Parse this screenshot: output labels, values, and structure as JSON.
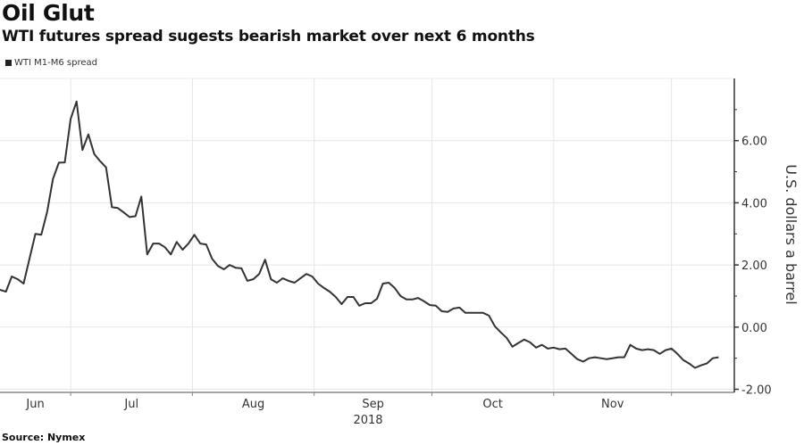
{
  "header": {
    "title": "Oil Glut",
    "subtitle": "WTI futures spread sugests bearish market over next 6 months"
  },
  "footer": {
    "source": "Source: Nymex"
  },
  "chart_data": {
    "type": "line",
    "title": "Oil Glut",
    "subtitle": "WTI futures spread sugests bearish market over next 6 months",
    "ylabel": "U.S. dollars a barrel",
    "xlabel": "",
    "x_start": "2018-06-13",
    "x_end": "2018-12-13",
    "xlim": [
      "2018-06-13",
      "2018-12-17"
    ],
    "ylim": [
      -2.1,
      8.0
    ],
    "y_axis_side": "right",
    "yticks": [
      -2,
      0,
      2,
      4,
      6
    ],
    "ytick_labels": [
      "-2.00",
      "0.00",
      "2.00",
      "4.00",
      "6.00"
    ],
    "x_month_boundaries": [
      "2018-07-01",
      "2018-08-01",
      "2018-09-01",
      "2018-10-01",
      "2018-11-01",
      "2018-12-01"
    ],
    "x_tick_labels": [
      {
        "label": "Jun",
        "from": "2018-06-13",
        "to": "2018-07-01"
      },
      {
        "label": "Jul",
        "from": "2018-07-01",
        "to": "2018-08-01"
      },
      {
        "label": "Aug",
        "from": "2018-08-01",
        "to": "2018-09-01"
      },
      {
        "label": "Sep",
        "from": "2018-09-01",
        "to": "2018-10-01"
      },
      {
        "label": "Oct",
        "from": "2018-10-01",
        "to": "2018-11-01"
      },
      {
        "label": "Nov",
        "from": "2018-11-01",
        "to": "2018-12-01"
      }
    ],
    "year_label": "2018",
    "grid": true,
    "legend_position": "top-left",
    "series": [
      {
        "name": "WTI M1-M6 spread",
        "color": "#333333",
        "values": [
          1.2,
          1.14,
          1.63,
          1.54,
          1.4,
          2.2,
          3.0,
          2.97,
          3.7,
          4.77,
          5.29,
          5.3,
          6.7,
          7.26,
          5.7,
          6.2,
          5.57,
          5.34,
          5.14,
          3.86,
          3.83,
          3.69,
          3.54,
          3.57,
          4.2,
          2.34,
          2.69,
          2.69,
          2.57,
          2.34,
          2.74,
          2.49,
          2.69,
          2.97,
          2.69,
          2.66,
          2.2,
          1.97,
          1.86,
          2.0,
          1.91,
          1.89,
          1.49,
          1.54,
          1.71,
          2.17,
          1.54,
          1.43,
          1.57,
          1.49,
          1.43,
          1.57,
          1.71,
          1.63,
          1.4,
          1.26,
          1.14,
          0.97,
          0.74,
          0.97,
          0.97,
          0.69,
          0.77,
          0.77,
          0.91,
          1.4,
          1.43,
          1.26,
          1.0,
          0.89,
          0.89,
          0.94,
          0.83,
          0.71,
          0.69,
          0.51,
          0.49,
          0.6,
          0.63,
          0.46,
          0.46,
          0.46,
          0.46,
          0.37,
          0.03,
          -0.17,
          -0.34,
          -0.63,
          -0.51,
          -0.4,
          -0.49,
          -0.66,
          -0.57,
          -0.69,
          -0.66,
          -0.71,
          -0.69,
          -0.86,
          -1.03,
          -1.11,
          -1.0,
          -0.97,
          -1.0,
          -1.03,
          -1.0,
          -0.97,
          -0.97,
          -0.57,
          -0.69,
          -0.74,
          -0.71,
          -0.74,
          -0.86,
          -0.74,
          -0.69,
          -0.86,
          -1.06,
          -1.17,
          -1.31,
          -1.23,
          -1.17,
          -1.0,
          -0.97
        ]
      }
    ]
  }
}
